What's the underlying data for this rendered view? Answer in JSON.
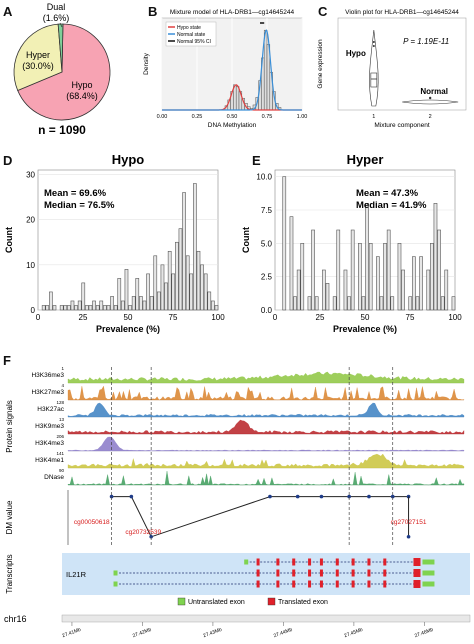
{
  "panels": {
    "A": {
      "label": "A",
      "n_text": "n = 1090",
      "chart_data": {
        "type": "pie",
        "slices": [
          {
            "name": "Hypo",
            "percent_label": "(68.4%)",
            "value": 68.4,
            "color": "#f7a3b3"
          },
          {
            "name": "Hyper",
            "percent_label": "(30.0%)",
            "value": 30.0,
            "color": "#f2f0b5"
          },
          {
            "name": "Dual",
            "percent_label": "(1.6%)",
            "value": 1.6,
            "color": "#7fcf99"
          }
        ]
      }
    },
    "B": {
      "label": "B",
      "chart_data": {
        "type": "histogram",
        "title": "Mixture model of HLA-DRB1—cg14645244",
        "xlabel": "DNA Methylation",
        "ylabel": "Density",
        "xticks": [
          "0.00",
          "0.25",
          "0.50",
          "0.75",
          "1.00"
        ],
        "xlim": [
          0,
          1
        ],
        "legend": [
          {
            "name": "Hypo state",
            "color": "#e04040"
          },
          {
            "name": "Normal state",
            "color": "#3a8fd8"
          },
          {
            "name": "Normal 95% CI",
            "color": "#111111"
          }
        ],
        "bins_x": [
          0.46,
          0.48,
          0.5,
          0.52,
          0.54,
          0.56,
          0.58,
          0.6,
          0.62,
          0.64,
          0.66,
          0.68,
          0.7,
          0.72,
          0.74,
          0.76,
          0.78,
          0.8,
          0.82,
          0.84
        ],
        "bins_h": [
          0.05,
          0.12,
          0.22,
          0.3,
          0.28,
          0.22,
          0.14,
          0.08,
          0.04,
          0.02,
          0.06,
          0.15,
          0.35,
          0.62,
          0.95,
          0.78,
          0.45,
          0.22,
          0.08,
          0.03
        ]
      }
    },
    "C": {
      "label": "C",
      "chart_data": {
        "type": "violin",
        "title": "Violin plot for HLA-DRB1—cg14645244",
        "ylabel": "Gene expression",
        "xlabel": "Mixture component",
        "categories": [
          "1",
          "2"
        ],
        "annotations": [
          "Hypo",
          "Normal",
          "P = 1.19E-11"
        ]
      }
    },
    "D": {
      "label": "D",
      "title": "Hypo",
      "mean_text": "Mean = 69.6%",
      "median_text": "Median = 76.5%",
      "chart_data": {
        "type": "bar",
        "xlabel": "Prevalence (%)",
        "ylabel": "Count",
        "xticks": [
          "0",
          "25",
          "50",
          "75",
          "100"
        ],
        "yticks": [
          "0",
          "10",
          "20",
          "30"
        ],
        "xlim": [
          0,
          100
        ],
        "ylim": [
          0,
          31
        ],
        "x": [
          2,
          4,
          6,
          8,
          10,
          12,
          14,
          16,
          18,
          20,
          22,
          24,
          26,
          28,
          30,
          32,
          34,
          36,
          38,
          40,
          42,
          44,
          46,
          48,
          50,
          52,
          54,
          56,
          58,
          60,
          62,
          64,
          66,
          68,
          70,
          72,
          74,
          76,
          78,
          80,
          82,
          84,
          86,
          88,
          90,
          92,
          94,
          96,
          98,
          100
        ],
        "values": [
          0,
          1,
          1,
          4,
          1,
          0,
          1,
          1,
          1,
          2,
          1,
          2,
          6,
          1,
          1,
          2,
          1,
          2,
          1,
          1,
          3,
          1,
          7,
          2,
          9,
          1,
          3,
          7,
          3,
          2,
          8,
          3,
          12,
          4,
          10,
          6,
          13,
          8,
          15,
          18,
          26,
          12,
          8,
          28,
          13,
          10,
          8,
          4,
          2,
          1
        ]
      }
    },
    "E": {
      "label": "E",
      "title": "Hyper",
      "mean_text": "Mean = 47.3%",
      "median_text": "Median = 41.9%",
      "chart_data": {
        "type": "bar",
        "xlabel": "Prevalence (%)",
        "ylabel": "Count",
        "xticks": [
          "0",
          "25",
          "50",
          "75",
          "100"
        ],
        "yticks": [
          "0.0",
          "2.5",
          "5.0",
          "7.5",
          "10.0"
        ],
        "xlim": [
          0,
          100
        ],
        "ylim": [
          0,
          10.5
        ],
        "x": [
          2,
          4,
          6,
          8,
          10,
          12,
          14,
          16,
          18,
          20,
          22,
          24,
          26,
          28,
          30,
          32,
          34,
          36,
          38,
          40,
          42,
          44,
          46,
          48,
          50,
          52,
          54,
          56,
          58,
          60,
          62,
          64,
          66,
          68,
          70,
          72,
          74,
          76,
          78,
          80,
          82,
          84,
          86,
          88,
          90,
          92,
          94,
          96,
          98,
          100
        ],
        "values": [
          0,
          0,
          10,
          0,
          7,
          1,
          3,
          5,
          0,
          1,
          6,
          1,
          0,
          3,
          2,
          0,
          1,
          6,
          0,
          3,
          1,
          6,
          0,
          5,
          1,
          8,
          5,
          0,
          4,
          1,
          5,
          6,
          1,
          0,
          5,
          3,
          0,
          1,
          4,
          1,
          4,
          0,
          3,
          5,
          8,
          6,
          1,
          3,
          0,
          1
        ]
      }
    },
    "F": {
      "label": "F",
      "group_label_signals": "Protein signals",
      "group_label_dm": "DM value",
      "group_label_tx": "Transcripts",
      "tracks": [
        {
          "name": "H3K36me3",
          "scale": "1",
          "color": "#8dc63f"
        },
        {
          "name": "H3K27me3",
          "scale": "4",
          "color": "#d9822b"
        },
        {
          "name": "H3K27ac",
          "scale": "128",
          "color": "#3a7fc1"
        },
        {
          "name": "H3K9me3",
          "scale": "13",
          "color": "#b72025"
        },
        {
          "name": "H3K4me3",
          "scale": "206",
          "color": "#8878c8"
        },
        {
          "name": "H3K4me1",
          "scale": "141",
          "color": "#c9c33a"
        },
        {
          "name": "DNase",
          "scale": "90",
          "color": "#3d9c5a"
        }
      ],
      "cpgs": [
        "cg00050618",
        "cg20732539",
        "cg27027151"
      ],
      "gene": "IL21R",
      "legend": [
        {
          "name": "Untranslated exon",
          "color": "#7fd34f"
        },
        {
          "name": "Translated exon",
          "color": "#e0202a"
        }
      ],
      "chrom": "chr16",
      "coords": [
        "27.41Mb",
        "27.42Mb",
        "27.43Mb",
        "27.44Mb",
        "27.45Mb",
        "27.46Mb"
      ]
    }
  }
}
